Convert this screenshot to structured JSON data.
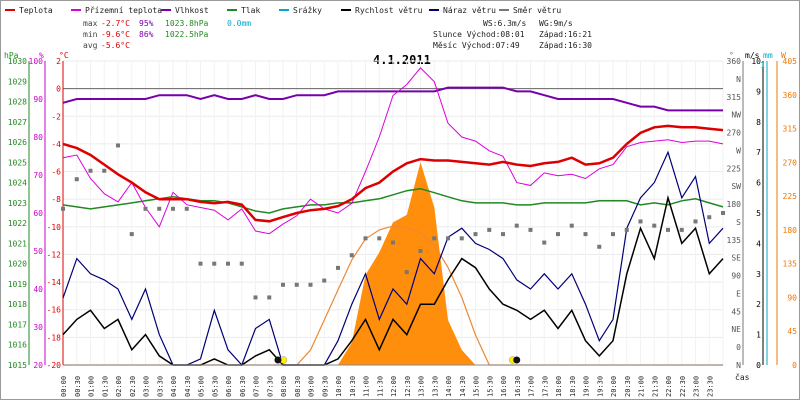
{
  "chart_data": {
    "type": "line",
    "title": "4.1.2011",
    "legend": [
      {
        "name": "Teplota",
        "color": "#dd0000"
      },
      {
        "name": "Přízemní teplota",
        "color": "#dd00dd"
      },
      {
        "name": "Vlhkost",
        "color": "#7700aa"
      },
      {
        "name": "Tlak",
        "color": "#228822"
      },
      {
        "name": "Srážky",
        "color": "#00aacc"
      },
      {
        "name": "Rychlost větru",
        "color": "#000000"
      },
      {
        "name": "Náraz větru",
        "color": "#000077"
      },
      {
        "name": "Směr větru",
        "color": "#777777"
      }
    ],
    "stats": {
      "max_label": "max",
      "max_temp": "-2.7°C",
      "max_hum": "95%",
      "max_press": "1023.8hPa",
      "max_rain": "0.0mm",
      "min_label": "min",
      "min_temp": "-9.6°C",
      "min_hum": "86%",
      "min_press": "1022.5hPa",
      "avg_label": "avg",
      "avg_temp": "-5.6°C"
    },
    "info": {
      "ws": "WS:6.3m/s",
      "wg": "WG:9m/s",
      "sun_rise": "Slunce Východ:08:01",
      "sun_set": "Západ:16:21",
      "moon_rise": "Měsíc Východ:07:49",
      "moon_set": "Západ:16:30"
    },
    "axes_units": {
      "hpa": "hPa",
      "pct": "%",
      "degc": "°C",
      "deg": "°",
      "ms": "m/s",
      "mm": "mm",
      "w": "W",
      "cas": "čas"
    },
    "hpa_ticks": [
      "1030",
      "1029",
      "1028",
      "1027",
      "1026",
      "1025",
      "1024",
      "1023",
      "1022",
      "1021",
      "1020",
      "1019",
      "1018",
      "1017",
      "1016",
      "1015"
    ],
    "pct_ticks": [
      "100",
      "90",
      "80",
      "70",
      "60",
      "50",
      "40",
      "30",
      "20"
    ],
    "temp_ticks": [
      "2",
      "0",
      "-2",
      "-4",
      "-6",
      "-8",
      "-10",
      "-12",
      "-14",
      "-16",
      "-18",
      "-20"
    ],
    "dir_ticks": [
      "360",
      "N",
      "315",
      "NW",
      "270",
      "W",
      "225",
      "SW",
      "180",
      "S",
      "135",
      "SE",
      "90",
      "E",
      "45",
      "NE",
      "0",
      "N"
    ],
    "ms_ticks": [
      "10",
      "9",
      "8",
      "7",
      "6",
      "5",
      "4",
      "3",
      "2",
      "1",
      "0"
    ],
    "mm_ticks": [
      "1"
    ],
    "w_ticks": [
      "405",
      "360",
      "315",
      "270",
      "225",
      "180",
      "135",
      "90",
      "45",
      "0"
    ],
    "x_labels": [
      "00:00",
      "00:30",
      "01:00",
      "01:30",
      "02:00",
      "02:30",
      "03:00",
      "03:30",
      "04:00",
      "04:30",
      "05:00",
      "05:30",
      "06:00",
      "06:30",
      "07:00",
      "07:30",
      "08:00",
      "08:30",
      "09:00",
      "09:30",
      "10:00",
      "10:30",
      "11:00",
      "11:30",
      "12:00",
      "12:30",
      "13:00",
      "13:30",
      "14:00",
      "14:30",
      "15:00",
      "15:30",
      "16:00",
      "16:30",
      "17:00",
      "17:30",
      "18:00",
      "18:30",
      "19:00",
      "19:30",
      "20:00",
      "20:30",
      "21:00",
      "21:30",
      "22:00",
      "22:30",
      "23:00",
      "23:30"
    ],
    "hours": [
      0,
      0.5,
      1,
      1.5,
      2,
      2.5,
      3,
      3.5,
      4,
      4.5,
      5,
      5.5,
      6,
      6.5,
      7,
      7.5,
      8,
      8.5,
      9,
      9.5,
      10,
      10.5,
      11,
      11.5,
      12,
      12.5,
      13,
      13.5,
      14,
      14.5,
      15,
      15.5,
      16,
      16.5,
      17,
      17.5,
      18,
      18.5,
      19,
      19.5,
      20,
      20.5,
      21,
      21.5,
      22,
      22.5,
      23,
      23.5,
      24
    ],
    "series": {
      "temperature": [
        -4.0,
        -4.3,
        -4.8,
        -5.5,
        -6.2,
        -6.8,
        -7.5,
        -8.0,
        -8.0,
        -8.0,
        -8.2,
        -8.3,
        -8.2,
        -8.4,
        -9.5,
        -9.6,
        -9.3,
        -9.0,
        -8.8,
        -8.7,
        -8.5,
        -8.0,
        -7.2,
        -6.8,
        -6.0,
        -5.4,
        -5.1,
        -5.2,
        -5.2,
        -5.3,
        -5.4,
        -5.5,
        -5.3,
        -5.5,
        -5.6,
        -5.4,
        -5.3,
        -5.0,
        -5.5,
        -5.4,
        -5.0,
        -4.0,
        -3.2,
        -2.8,
        -2.7,
        -2.8,
        -2.8,
        -2.9,
        -3.0
      ],
      "ground_temperature": [
        -5.0,
        -4.8,
        -6.5,
        -7.6,
        -8.2,
        -6.8,
        -8.6,
        -10.0,
        -7.5,
        -8.4,
        -8.6,
        -8.8,
        -9.5,
        -8.7,
        -10.3,
        -10.5,
        -9.8,
        -9.2,
        -8.0,
        -8.7,
        -9.0,
        -8.3,
        -6.0,
        -3.5,
        -0.5,
        0.3,
        1.5,
        0.5,
        -2.5,
        -3.5,
        -3.8,
        -4.5,
        -4.9,
        -6.8,
        -7.0,
        -6.1,
        -6.3,
        -6.2,
        -6.5,
        -5.8,
        -5.5,
        -4.2,
        -3.9,
        -3.8,
        -3.7,
        -3.9,
        -3.8,
        -3.8,
        -4.0
      ],
      "humidity": [
        89,
        90,
        90,
        90,
        90,
        90,
        90,
        91,
        91,
        91,
        90,
        91,
        90,
        90,
        91,
        90,
        90,
        91,
        91,
        91,
        92,
        92,
        92,
        92,
        92,
        92,
        92,
        92,
        93,
        93,
        93,
        93,
        93,
        92,
        92,
        91,
        90,
        90,
        90,
        90,
        90,
        89,
        88,
        88,
        87,
        87,
        87,
        87,
        87
      ],
      "pressure": [
        1022.9,
        1022.8,
        1022.7,
        1022.8,
        1022.9,
        1023.0,
        1023.1,
        1023.2,
        1023.3,
        1023.2,
        1023.1,
        1023.1,
        1023.0,
        1022.8,
        1022.6,
        1022.5,
        1022.7,
        1022.8,
        1022.9,
        1022.9,
        1023.0,
        1023.0,
        1023.1,
        1023.2,
        1023.4,
        1023.6,
        1023.7,
        1023.5,
        1023.3,
        1023.1,
        1023.0,
        1023.0,
        1023.0,
        1022.9,
        1022.9,
        1023.0,
        1023.0,
        1023.0,
        1023.0,
        1023.1,
        1023.1,
        1023.1,
        1022.9,
        1023.0,
        1022.9,
        1023.1,
        1023.2,
        1023.0,
        1022.8
      ],
      "wind_speed": [
        1.0,
        1.5,
        1.8,
        1.2,
        1.5,
        0.5,
        1.0,
        0.3,
        0.0,
        0.0,
        0.0,
        0.2,
        0.0,
        0.0,
        0.3,
        0.5,
        0.0,
        0.0,
        0.0,
        0.0,
        0.2,
        0.8,
        1.5,
        0.5,
        1.5,
        1.0,
        2.0,
        2.0,
        2.8,
        3.5,
        3.2,
        2.5,
        2.0,
        1.8,
        1.5,
        1.8,
        1.2,
        1.8,
        0.8,
        0.3,
        0.8,
        3.0,
        4.5,
        3.5,
        5.5,
        4.0,
        4.5,
        3.0,
        3.5
      ],
      "wind_gust": [
        2.2,
        3.5,
        3.0,
        2.8,
        2.5,
        1.5,
        2.5,
        1.0,
        0.0,
        0.0,
        0.2,
        1.8,
        0.5,
        0.0,
        1.2,
        1.5,
        0.0,
        0.0,
        0.0,
        0.0,
        0.8,
        2.0,
        3.0,
        1.5,
        2.5,
        2.0,
        3.5,
        3.0,
        4.2,
        4.5,
        4.0,
        3.8,
        3.5,
        2.8,
        2.5,
        3.0,
        2.5,
        3.0,
        2.0,
        0.8,
        1.5,
        4.5,
        5.5,
        6.0,
        7.0,
        5.5,
        6.2,
        4.0,
        4.5
      ],
      "wind_direction": [
        185,
        220,
        230,
        230,
        260,
        155,
        185,
        185,
        185,
        185,
        120,
        120,
        120,
        120,
        80,
        80,
        95,
        95,
        95,
        100,
        115,
        130,
        150,
        150,
        145,
        110,
        135,
        150,
        150,
        150,
        155,
        160,
        155,
        165,
        160,
        145,
        155,
        165,
        155,
        140,
        155,
        160,
        170,
        165,
        160,
        160,
        170,
        175,
        180
      ],
      "solar_radiation": [
        0,
        0,
        0,
        0,
        0,
        0,
        0,
        0,
        0,
        0,
        0,
        0,
        0,
        0,
        0,
        0,
        0,
        0,
        0,
        0,
        0,
        30,
        120,
        150,
        190,
        200,
        270,
        210,
        60,
        20,
        0,
        0,
        0,
        0,
        0,
        0,
        0,
        0,
        0,
        0,
        0,
        0,
        0,
        0,
        0,
        0,
        0,
        0,
        0
      ],
      "solar_max": [
        0,
        0,
        0,
        0,
        0,
        0,
        0,
        0,
        0,
        0,
        0,
        0,
        0,
        0,
        0,
        0,
        0,
        0,
        20,
        60,
        100,
        140,
        168,
        180,
        185,
        183,
        176,
        160,
        130,
        90,
        40,
        0,
        0,
        0,
        0,
        0,
        0,
        0,
        0,
        0,
        0,
        0,
        0,
        0,
        0,
        0,
        0,
        0,
        0
      ]
    },
    "ranges": {
      "temp": [
        -20,
        2
      ],
      "humidity": [
        20,
        100
      ],
      "pressure": [
        1015,
        1030
      ],
      "wind": [
        0,
        10
      ],
      "direction": [
        0,
        360
      ],
      "solar": [
        0,
        405
      ]
    },
    "markers": {
      "sun": [
        "08:01",
        "16:21"
      ],
      "moon": [
        "07:49",
        "16:30"
      ]
    }
  }
}
